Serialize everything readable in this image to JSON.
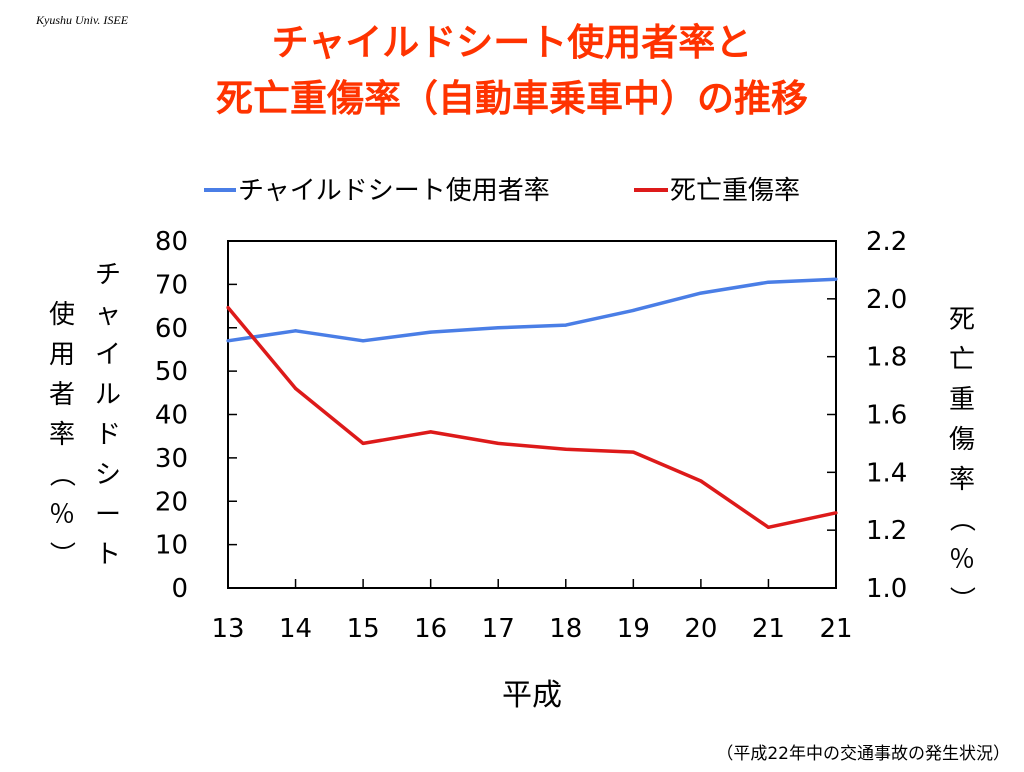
{
  "header": {
    "institution": "Kyushu Univ. ISEE"
  },
  "title": {
    "line1": "チャイルドシート使用者率と",
    "line2": "死亡重傷率（自動車乗車中）の推移"
  },
  "source": "（平成22年中の交通事故の発生状況）",
  "colors": {
    "title": "#ff3300",
    "usage": "#4a7ee6",
    "injury": "#dd1a1a"
  },
  "chart_data": {
    "type": "line",
    "categories": [
      "13",
      "14",
      "15",
      "16",
      "17",
      "18",
      "19",
      "20",
      "21",
      "21"
    ],
    "xlabel": "平成",
    "left_axis": {
      "label": "チャイルドシート使用者率（％）",
      "range": [
        0,
        80
      ],
      "ticks": [
        "80",
        "70",
        "60",
        "50",
        "40",
        "30",
        "20",
        "10",
        "0"
      ]
    },
    "right_axis": {
      "label": "死亡重傷率（％）",
      "range": [
        1.0,
        2.2
      ],
      "ticks": [
        "2.2",
        "2.0",
        "1.8",
        "1.6",
        "1.4",
        "1.2",
        "1.0"
      ]
    },
    "legend_position": "top",
    "grid": false,
    "series": [
      {
        "name": "チャイルドシート使用者率",
        "axis": "left",
        "color": "#4a7ee6",
        "values": [
          57.0,
          59.3,
          57.0,
          59.0,
          60.0,
          60.6,
          64.0,
          68.0,
          70.5,
          71.2
        ]
      },
      {
        "name": "死亡重傷率",
        "axis": "right",
        "color": "#dd1a1a",
        "values": [
          1.97,
          1.69,
          1.5,
          1.54,
          1.5,
          1.48,
          1.47,
          1.37,
          1.21,
          1.26
        ]
      }
    ]
  }
}
